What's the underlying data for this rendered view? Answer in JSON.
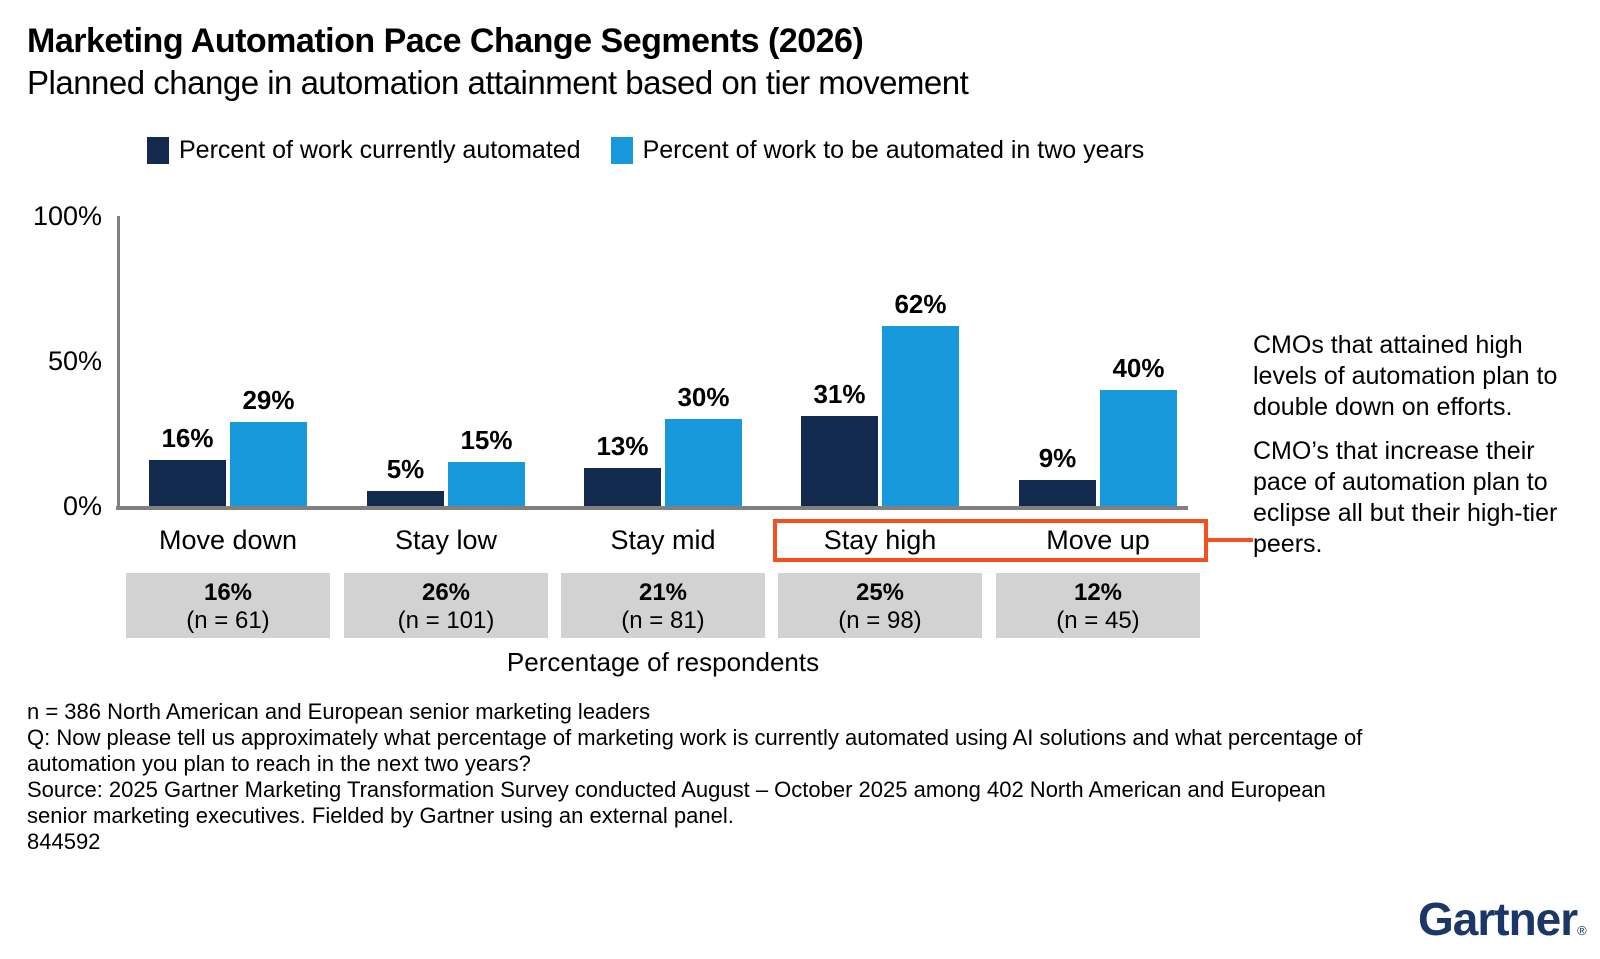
{
  "header": {
    "title": "Marketing Automation Pace Change Segments (2026)",
    "subtitle": "Planned change in automation attainment based on tier movement"
  },
  "legend": [
    {
      "label": "Percent of work currently automated",
      "color": "#122A4E"
    },
    {
      "label": "Percent of work to be automated in two years",
      "color": "#1899DB"
    }
  ],
  "chart_data": {
    "type": "bar",
    "title": "Marketing Automation Pace Change Segments (2026)",
    "subtitle": "Planned change in automation attainment based on tier movement",
    "categories": [
      "Move down",
      "Stay low",
      "Stay mid",
      "Stay high",
      "Move up"
    ],
    "series": [
      {
        "name": "Percent of work currently automated",
        "color": "#122A4E",
        "values": [
          16,
          5,
          13,
          31,
          9
        ]
      },
      {
        "name": "Percent of work to be automated in two years",
        "color": "#1899DB",
        "values": [
          29,
          15,
          30,
          62,
          40
        ]
      }
    ],
    "unit": "%",
    "y_ticks": [
      "0%",
      "50%",
      "100%"
    ],
    "ylim": [
      0,
      100
    ],
    "grid": false,
    "legend_position": "top",
    "xlabel": "Percentage of respondents",
    "respondent_share": [
      {
        "pct": "16%",
        "n": "(n = 61)"
      },
      {
        "pct": "26%",
        "n": "(n = 101)"
      },
      {
        "pct": "21%",
        "n": "(n = 81)"
      },
      {
        "pct": "25%",
        "n": "(n = 98)"
      },
      {
        "pct": "12%",
        "n": "(n = 45)"
      }
    ],
    "highlight": {
      "categories": [
        "Stay high",
        "Move up"
      ],
      "color": "#F4501E"
    },
    "colors": {
      "axis": "#808080",
      "respondent_box": "#D2D2D2"
    }
  },
  "callout": {
    "paragraphs": [
      "CMOs that attained high levels of automation plan to double down on efforts.",
      "CMO’s that increase their pace of automation plan to eclipse all but their high-tier peers."
    ]
  },
  "footnotes": {
    "line1": "n = 386 North American and European senior marketing leaders",
    "line2": "Q: Now please tell us approximately what percentage of marketing work is currently automated using AI solutions and what percentage of automation you plan to reach in the next two years?",
    "line3": "Source: 2025 Gartner Marketing Transformation Survey conducted August – October 2025 among 402 North American and European senior marketing executives. Fielded by Gartner using an external panel.",
    "line4": "844592"
  },
  "branding": {
    "logo": "Gartner",
    "registered": "®",
    "logo_color": "#1A3767"
  }
}
